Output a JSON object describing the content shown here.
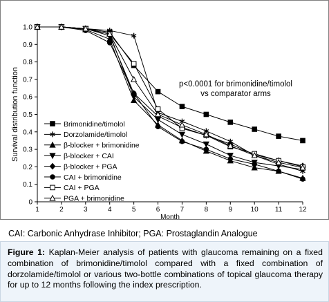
{
  "chart_data": {
    "type": "line",
    "x": [
      1,
      2,
      3,
      4,
      5,
      6,
      7,
      8,
      9,
      10,
      11,
      12
    ],
    "xlim": [
      1,
      12
    ],
    "ylim": [
      0,
      1.0
    ],
    "xticks": [
      "1",
      "2",
      "3",
      "4",
      "5",
      "6",
      "7",
      "8",
      "9",
      "10",
      "11",
      "12"
    ],
    "yticks": [
      "0",
      "0.1",
      "0.2",
      "0.3",
      "0.4",
      "0.5",
      "0.6",
      "0.7",
      "0.8",
      "0.9",
      "1.0"
    ],
    "xlabel": "Month",
    "ylabel": "Survival distribution function",
    "annotation": [
      "p<0.0001 for brimonidine/timolol",
      "vs comparator arms"
    ],
    "legend_placement": "center-left",
    "series": [
      {
        "name": "Brimonidine/timolol",
        "marker": "square-filled",
        "values": [
          1.0,
          1.0,
          0.99,
          0.97,
          0.78,
          0.63,
          0.545,
          0.5,
          0.455,
          0.415,
          0.375,
          0.35
        ]
      },
      {
        "name": "Dorzolamide/timolol",
        "marker": "star",
        "values": [
          1.0,
          1.0,
          0.99,
          0.98,
          0.95,
          0.51,
          0.46,
          0.405,
          0.345,
          0.265,
          0.215,
          0.175
        ]
      },
      {
        "name": "β-blocker + brimonidine",
        "marker": "triangle-up-filled",
        "values": [
          1.0,
          1.0,
          0.985,
          0.93,
          0.58,
          0.44,
          0.35,
          0.29,
          0.235,
          0.195,
          0.175,
          0.135
        ]
      },
      {
        "name": "β-blocker + CAI",
        "marker": "triangle-down-filled",
        "values": [
          1.0,
          1.0,
          0.99,
          0.96,
          0.6,
          0.47,
          0.385,
          0.33,
          0.265,
          0.225,
          0.205,
          0.185
        ]
      },
      {
        "name": "β-blocker + PGA",
        "marker": "diamond-filled",
        "values": [
          1.0,
          1.0,
          0.99,
          0.95,
          0.62,
          0.49,
          0.425,
          0.38,
          0.33,
          0.27,
          0.235,
          0.205
        ]
      },
      {
        "name": "CAI + brimonidine",
        "marker": "circle-filled",
        "values": [
          1.0,
          1.0,
          0.98,
          0.91,
          0.62,
          0.43,
          0.345,
          0.3,
          0.245,
          0.215,
          0.175,
          0.13
        ]
      },
      {
        "name": "CAI + PGA",
        "marker": "square-open",
        "values": [
          1.0,
          1.0,
          0.99,
          0.96,
          0.79,
          0.53,
          0.42,
          0.38,
          0.315,
          0.275,
          0.235,
          0.2
        ]
      },
      {
        "name": "PGA + brimonidine",
        "marker": "triangle-up-open",
        "values": [
          1.0,
          1.0,
          0.99,
          0.96,
          0.7,
          0.5,
          0.44,
          0.385,
          0.32,
          0.265,
          0.225,
          0.195
        ]
      }
    ]
  },
  "abbreviations": "CAI: Carbonic Anhydrase Inhibitor; PGA: Prostaglandin Analogue",
  "caption": {
    "label": "Figure 1:",
    "text": "Kaplan-Meier analysis of patients with glaucoma remaining on a fixed combination of brimonidine/timolol compared with a fixed combination of dorzolamide/timolol or various two-bottle combinations of topical glaucoma therapy for up to 12 months following the index prescription."
  }
}
